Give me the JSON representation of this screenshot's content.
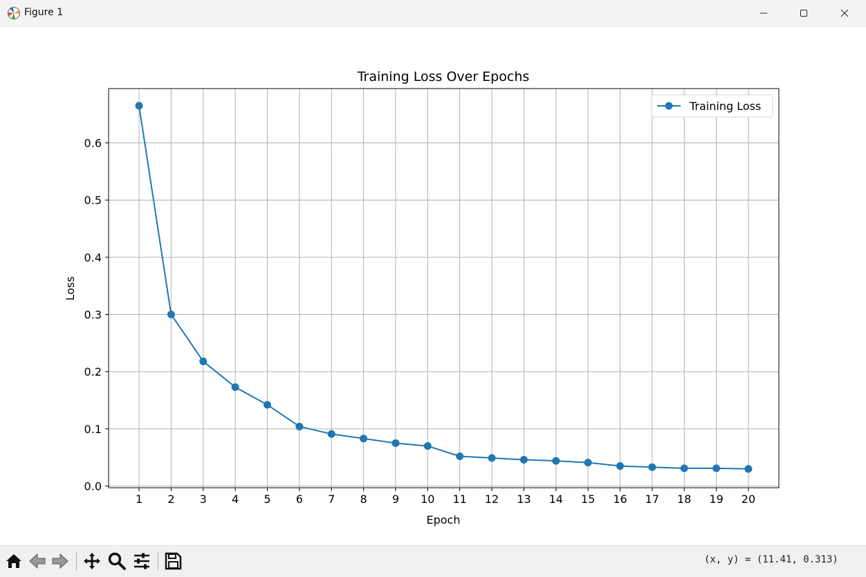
{
  "window": {
    "title": "Figure 1",
    "controls": [
      "minimize",
      "maximize",
      "close"
    ]
  },
  "chart_data": {
    "type": "line",
    "title": "Training Loss Over Epochs",
    "xlabel": "Epoch",
    "ylabel": "Loss",
    "x": [
      1,
      2,
      3,
      4,
      5,
      6,
      7,
      8,
      9,
      10,
      11,
      12,
      13,
      14,
      15,
      16,
      17,
      18,
      19,
      20
    ],
    "xticks": [
      "1",
      "2",
      "3",
      "4",
      "5",
      "6",
      "7",
      "8",
      "9",
      "10",
      "11",
      "12",
      "13",
      "14",
      "15",
      "16",
      "17",
      "18",
      "19",
      "20"
    ],
    "yticks": [
      "0.0",
      "0.1",
      "0.2",
      "0.3",
      "0.4",
      "0.5",
      "0.6"
    ],
    "ytick_values": [
      0.0,
      0.1,
      0.2,
      0.3,
      0.4,
      0.5,
      0.6
    ],
    "series": [
      {
        "name": "Training Loss",
        "color": "#1f77b4",
        "marker": "circle",
        "values": [
          0.665,
          0.3,
          0.218,
          0.173,
          0.142,
          0.104,
          0.091,
          0.083,
          0.075,
          0.07,
          0.052,
          0.049,
          0.046,
          0.044,
          0.041,
          0.035,
          0.033,
          0.031,
          0.031,
          0.03
        ]
      }
    ],
    "xlim": [
      0.05,
      20.95
    ],
    "ylim": [
      -0.003,
      0.695
    ],
    "grid": true,
    "legend_position": "upper right"
  },
  "toolbar": {
    "tools": [
      "home-icon",
      "back-icon",
      "forward-icon",
      "pan-icon",
      "zoom-icon",
      "configure-subplots-icon",
      "save-icon"
    ],
    "coords_text": "(x, y) = (11.41, 0.313)"
  }
}
